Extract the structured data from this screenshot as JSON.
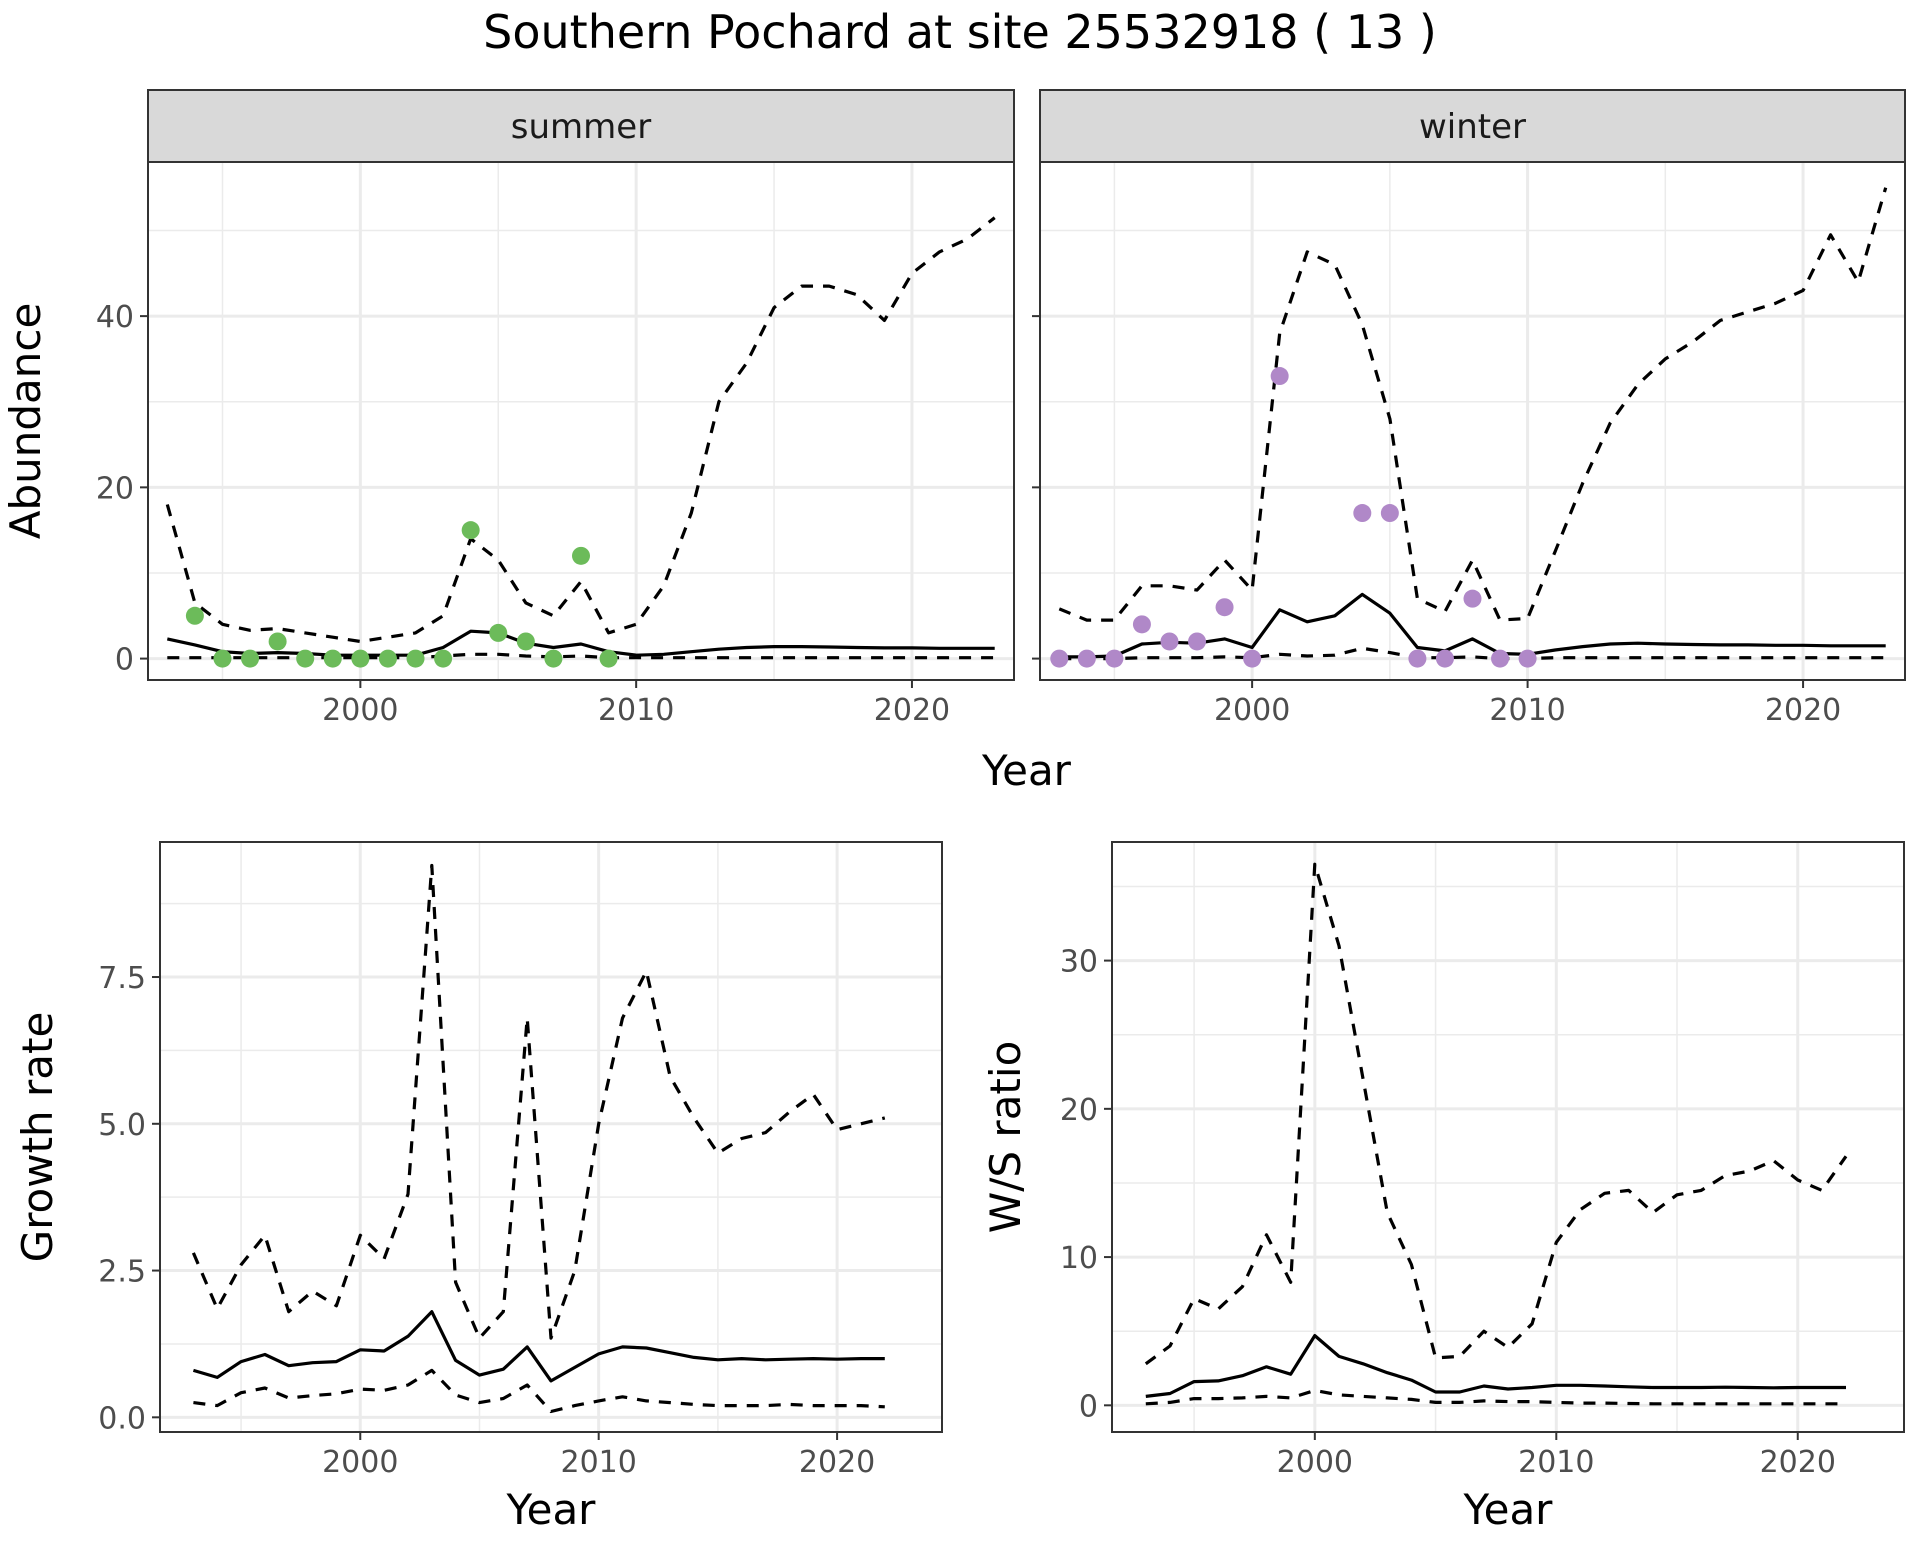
{
  "title": "Southern Pochard at site 25532918 ( 13 )",
  "colors": {
    "summer_points": "#6cbb5a",
    "winter_points": "#b088c8",
    "line": "#000000",
    "strip_fill": "#d9d9d9",
    "grid_major": "#ebebeb",
    "panel_border": "#333333"
  },
  "chart_data": [
    {
      "type": "line",
      "panel": "summer",
      "strip_label": "summer",
      "xlabel": "Year",
      "ylabel": "Abundance",
      "xlim": [
        1992.3,
        2023.7
      ],
      "ylim": [
        -2.5,
        58
      ],
      "x_ticks": [
        2000,
        2010,
        2020
      ],
      "y_ticks": [
        0,
        20,
        40
      ],
      "grid": true,
      "points": {
        "x": [
          1994,
          1995,
          1996,
          1997,
          1998,
          1999,
          2000,
          2001,
          2002,
          2003,
          2004,
          2005,
          2006,
          2007,
          2008,
          2009
        ],
        "y": [
          5,
          0,
          0,
          2,
          0,
          0,
          0,
          0,
          0,
          0,
          15,
          3,
          2,
          0,
          12,
          0
        ]
      },
      "series": [
        {
          "style": "dashed",
          "x": [
            1993,
            1994,
            1995,
            1996,
            1997,
            1998,
            1999,
            2000,
            2001,
            2002,
            2003,
            2004,
            2005,
            2006,
            2007,
            2008,
            2009,
            2010,
            2011,
            2012,
            2013,
            2014,
            2015,
            2016,
            2017,
            2018,
            2019,
            2020,
            2021,
            2022,
            2023
          ],
          "values": [
            18,
            6.5,
            4,
            3.3,
            3.5,
            3,
            2.5,
            2,
            2.5,
            3,
            5,
            14,
            11.5,
            6.5,
            5,
            9,
            3,
            4,
            8.5,
            17,
            30,
            34.5,
            41,
            43.5,
            43.5,
            42.5,
            39.5,
            45,
            47.5,
            49,
            51.5
          ]
        },
        {
          "style": "solid",
          "x": [
            1993,
            1994,
            1995,
            1996,
            1997,
            1998,
            1999,
            2000,
            2001,
            2002,
            2003,
            2004,
            2005,
            2006,
            2007,
            2008,
            2009,
            2010,
            2011,
            2012,
            2013,
            2014,
            2015,
            2016,
            2017,
            2018,
            2019,
            2020,
            2021,
            2022,
            2023
          ],
          "values": [
            2.3,
            1.6,
            0.8,
            0.6,
            0.7,
            0.6,
            0.4,
            0.4,
            0.4,
            0.4,
            1.3,
            3.2,
            3.0,
            1.8,
            1.3,
            1.7,
            0.8,
            0.4,
            0.5,
            0.8,
            1.1,
            1.3,
            1.4,
            1.4,
            1.35,
            1.3,
            1.25,
            1.25,
            1.2,
            1.2,
            1.2
          ]
        },
        {
          "style": "dashed",
          "x": [
            1993,
            1994,
            1995,
            1996,
            1997,
            1998,
            1999,
            2000,
            2001,
            2002,
            2003,
            2004,
            2005,
            2006,
            2007,
            2008,
            2009,
            2010,
            2011,
            2012,
            2013,
            2014,
            2015,
            2016,
            2017,
            2018,
            2019,
            2020,
            2021,
            2022,
            2023
          ],
          "values": [
            0.1,
            0.1,
            0.1,
            0.1,
            0.1,
            0.1,
            0.1,
            0.1,
            0.1,
            0.1,
            0.3,
            0.5,
            0.5,
            0.3,
            0.2,
            0.3,
            0.1,
            0.1,
            0.1,
            0.1,
            0.1,
            0.1,
            0.1,
            0.1,
            0.1,
            0.1,
            0.1,
            0.1,
            0.1,
            0.1,
            0.1
          ]
        }
      ]
    },
    {
      "type": "line",
      "panel": "winter",
      "strip_label": "winter",
      "xlabel": "Year",
      "ylabel": "Abundance",
      "xlim": [
        1992.3,
        2023.7
      ],
      "ylim": [
        -2.5,
        58
      ],
      "x_ticks": [
        2000,
        2010,
        2020
      ],
      "y_ticks": [
        0,
        20,
        40
      ],
      "grid": true,
      "points": {
        "x": [
          1993,
          1994,
          1995,
          1996,
          1997,
          1998,
          1999,
          2000,
          2001,
          2004,
          2005,
          2006,
          2007,
          2008,
          2009,
          2010
        ],
        "y": [
          0,
          0,
          0,
          4,
          2,
          2,
          6,
          0,
          33,
          17,
          17,
          0,
          0,
          7,
          0,
          0
        ]
      },
      "series": [
        {
          "style": "dashed",
          "x": [
            1993,
            1994,
            1995,
            1996,
            1997,
            1998,
            1999,
            2000,
            2001,
            2002,
            2003,
            2004,
            2005,
            2006,
            2007,
            2008,
            2009,
            2010,
            2011,
            2012,
            2013,
            2014,
            2015,
            2016,
            2017,
            2018,
            2019,
            2020,
            2021,
            2022,
            2023
          ],
          "values": [
            5.8,
            4.5,
            4.5,
            8.5,
            8.5,
            8,
            11.5,
            8,
            38,
            47.5,
            46,
            39,
            28,
            7,
            5.5,
            11.5,
            4.5,
            4.7,
            12.5,
            20.5,
            27.5,
            32,
            35,
            37,
            39.5,
            40.5,
            41.5,
            43,
            49.5,
            44,
            55
          ]
        },
        {
          "style": "solid",
          "x": [
            1993,
            1994,
            1995,
            1996,
            1997,
            1998,
            1999,
            2000,
            2001,
            2002,
            2003,
            2004,
            2005,
            2006,
            2007,
            2008,
            2009,
            2010,
            2011,
            2012,
            2013,
            2014,
            2015,
            2016,
            2017,
            2018,
            2019,
            2020,
            2021,
            2022,
            2023
          ],
          "values": [
            0.2,
            0.2,
            0.3,
            1.7,
            1.9,
            1.8,
            2.3,
            1.3,
            5.7,
            4.3,
            5,
            7.5,
            5.3,
            1.3,
            0.9,
            2.3,
            0.6,
            0.5,
            1,
            1.4,
            1.7,
            1.8,
            1.7,
            1.65,
            1.6,
            1.6,
            1.55,
            1.55,
            1.5,
            1.5,
            1.5
          ]
        },
        {
          "style": "dashed",
          "x": [
            1993,
            1994,
            1995,
            1996,
            1997,
            1998,
            1999,
            2000,
            2001,
            2002,
            2003,
            2004,
            2005,
            2006,
            2007,
            2008,
            2009,
            2010,
            2011,
            2012,
            2013,
            2014,
            2015,
            2016,
            2017,
            2018,
            2019,
            2020,
            2021,
            2022,
            2023
          ],
          "values": [
            0,
            0,
            0,
            0.1,
            0.1,
            0.1,
            0.2,
            0.1,
            0.5,
            0.3,
            0.4,
            1.2,
            0.7,
            0.1,
            0.1,
            0.2,
            0,
            0,
            0.1,
            0.1,
            0.1,
            0.1,
            0.1,
            0.1,
            0.1,
            0.1,
            0.1,
            0.1,
            0.1,
            0.1,
            0.1
          ]
        }
      ]
    },
    {
      "type": "line",
      "panel": "growth",
      "xlabel": "Year",
      "ylabel": "Growth rate",
      "xlim": [
        1991.6,
        2024.4
      ],
      "ylim": [
        -0.25,
        9.8
      ],
      "x_ticks": [
        2000,
        2010,
        2020
      ],
      "y_ticks": [
        0.0,
        2.5,
        5.0,
        7.5
      ],
      "y_tick_labels": [
        "0.0",
        "2.5",
        "5.0",
        "7.5"
      ],
      "grid": true,
      "series": [
        {
          "style": "dashed",
          "x": [
            1993,
            1994,
            1995,
            1996,
            1997,
            1998,
            1999,
            2000,
            2001,
            2002,
            2003,
            2004,
            2005,
            2006,
            2007,
            2008,
            2009,
            2010,
            2011,
            2012,
            2013,
            2014,
            2015,
            2016,
            2017,
            2018,
            2019,
            2020,
            2021,
            2022
          ],
          "values": [
            2.8,
            1.85,
            2.6,
            3.1,
            1.8,
            2.15,
            1.9,
            3.1,
            2.7,
            3.8,
            9.4,
            2.3,
            1.35,
            1.8,
            6.8,
            1.35,
            2.5,
            5.0,
            6.8,
            7.6,
            5.8,
            5.1,
            4.5,
            4.75,
            4.85,
            5.2,
            5.5,
            4.9,
            5.0,
            5.1
          ]
        },
        {
          "style": "solid",
          "x": [
            1993,
            1994,
            1995,
            1996,
            1997,
            1998,
            1999,
            2000,
            2001,
            2002,
            2003,
            2004,
            2005,
            2006,
            2007,
            2008,
            2009,
            2010,
            2011,
            2012,
            2013,
            2014,
            2015,
            2016,
            2017,
            2018,
            2019,
            2020,
            2021,
            2022
          ],
          "values": [
            0.8,
            0.68,
            0.95,
            1.07,
            0.88,
            0.93,
            0.95,
            1.15,
            1.13,
            1.38,
            1.8,
            0.97,
            0.72,
            0.82,
            1.2,
            0.62,
            0.85,
            1.08,
            1.2,
            1.18,
            1.1,
            1.02,
            0.98,
            1.0,
            0.98,
            0.99,
            1.0,
            0.99,
            1.0,
            1.0
          ]
        },
        {
          "style": "dashed",
          "x": [
            1993,
            1994,
            1995,
            1996,
            1997,
            1998,
            1999,
            2000,
            2001,
            2002,
            2003,
            2004,
            2005,
            2006,
            2007,
            2008,
            2009,
            2010,
            2011,
            2012,
            2013,
            2014,
            2015,
            2016,
            2017,
            2018,
            2019,
            2020,
            2021,
            2022
          ],
          "values": [
            0.25,
            0.2,
            0.42,
            0.5,
            0.33,
            0.37,
            0.4,
            0.48,
            0.46,
            0.55,
            0.8,
            0.38,
            0.25,
            0.32,
            0.55,
            0.1,
            0.2,
            0.28,
            0.35,
            0.28,
            0.25,
            0.22,
            0.2,
            0.2,
            0.2,
            0.22,
            0.2,
            0.2,
            0.2,
            0.18
          ]
        }
      ]
    },
    {
      "type": "line",
      "panel": "ratio",
      "xlabel": "Year",
      "ylabel": "W/S ratio",
      "xlim": [
        1991.6,
        2024.4
      ],
      "ylim": [
        -1.8,
        38
      ],
      "x_ticks": [
        2000,
        2010,
        2020
      ],
      "y_ticks": [
        0,
        10,
        20,
        30
      ],
      "grid": true,
      "series": [
        {
          "style": "dashed",
          "x": [
            1993,
            1994,
            1995,
            1996,
            1997,
            1998,
            1999,
            2000,
            2001,
            2002,
            2003,
            2004,
            2005,
            2006,
            2007,
            2008,
            2009,
            2010,
            2011,
            2012,
            2013,
            2014,
            2015,
            2016,
            2017,
            2018,
            2019,
            2020,
            2021,
            2022
          ],
          "values": [
            2.8,
            4,
            7.2,
            6.5,
            8,
            11.5,
            8.3,
            36.5,
            31,
            22,
            13,
            9.5,
            3.2,
            3.3,
            5,
            3.9,
            5.5,
            11,
            13.2,
            14.3,
            14.5,
            13,
            14.2,
            14.5,
            15.5,
            15.8,
            16.5,
            15.2,
            14.5,
            16.8
          ]
        },
        {
          "style": "solid",
          "x": [
            1993,
            1994,
            1995,
            1996,
            1997,
            1998,
            1999,
            2000,
            2001,
            2002,
            2003,
            2004,
            2005,
            2006,
            2007,
            2008,
            2009,
            2010,
            2011,
            2012,
            2013,
            2014,
            2015,
            2016,
            2017,
            2018,
            2019,
            2020,
            2021,
            2022
          ],
          "values": [
            0.6,
            0.8,
            1.6,
            1.65,
            2,
            2.6,
            2.1,
            4.7,
            3.3,
            2.8,
            2.2,
            1.7,
            0.9,
            0.9,
            1.3,
            1.1,
            1.2,
            1.35,
            1.35,
            1.3,
            1.25,
            1.2,
            1.2,
            1.2,
            1.22,
            1.2,
            1.18,
            1.2,
            1.2,
            1.2
          ]
        },
        {
          "style": "dashed",
          "x": [
            1993,
            1994,
            1995,
            1996,
            1997,
            1998,
            1999,
            2000,
            2001,
            2002,
            2003,
            2004,
            2005,
            2006,
            2007,
            2008,
            2009,
            2010,
            2011,
            2012,
            2013,
            2014,
            2015,
            2016,
            2017,
            2018,
            2019,
            2020,
            2021,
            2022
          ],
          "values": [
            0.1,
            0.2,
            0.45,
            0.45,
            0.5,
            0.6,
            0.5,
            1,
            0.7,
            0.6,
            0.5,
            0.4,
            0.2,
            0.2,
            0.3,
            0.25,
            0.25,
            0.2,
            0.15,
            0.15,
            0.12,
            0.1,
            0.1,
            0.1,
            0.1,
            0.1,
            0.1,
            0.1,
            0.1,
            0.1
          ]
        }
      ]
    }
  ]
}
